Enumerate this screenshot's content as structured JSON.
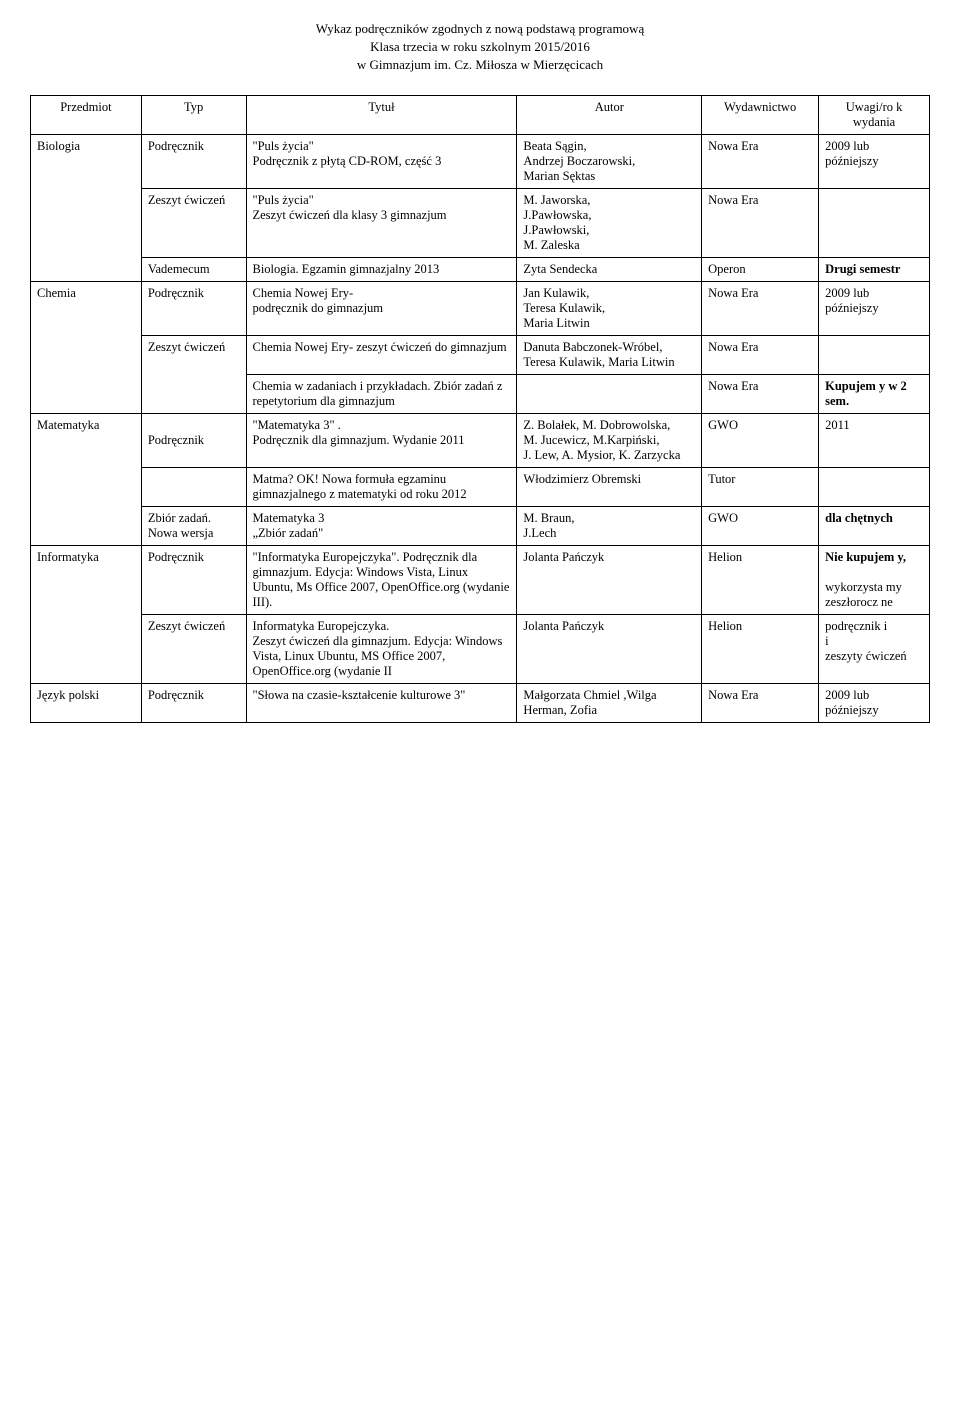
{
  "header": {
    "line1": "Wykaz podręczników zgodnych z nową podstawą programową",
    "line2": "Klasa trzecia w roku szkolnym 2015/2016",
    "line3": "w Gimnazjum im. Cz. Miłosza w Mierzęcicach"
  },
  "columns": [
    "Przedmiot",
    "Typ",
    "Tytuł",
    "Autor",
    "Wydawnictwo",
    "Uwagi/ro k wydania"
  ],
  "rows": [
    {
      "c0": "Biologia",
      "c1": "Podręcznik",
      "c2": "\"Puls życia\"\nPodręcznik z płytą CD-ROM, część 3",
      "c3": "Beata Sągin,\nAndrzej Boczarowski,\nMarian Sęktas",
      "c4": "Nowa Era",
      "c5": "2009 lub późniejszy",
      "r0": 3
    },
    {
      "c1": "Zeszyt ćwiczeń",
      "c2": "\"Puls życia\"\nZeszyt ćwiczeń dla klasy 3 gimnazjum",
      "c3": "M. Jaworska,\nJ.Pawłowska,\nJ.Pawłowski,\n M. Zaleska",
      "c4": "Nowa Era",
      "c5": ""
    },
    {
      "c1": "Vademecum",
      "c2": "Biologia. Egzamin gimnazjalny 2013",
      "c3": "Zyta Sendecka",
      "c4": "Operon",
      "c5": "Drugi semestr",
      "b5": true
    },
    {
      "c0": "Chemia",
      "c1": "Podręcznik",
      "c2": "Chemia Nowej Ery-\npodręcznik do gimnazjum",
      "c3": "Jan Kulawik,\nTeresa Kulawik,\nMaria Litwin",
      "c4": "Nowa Era",
      "c5": "2009 lub późniejszy",
      "r0": 3
    },
    {
      "c1": "Zeszyt ćwiczeń",
      "c2": "Chemia Nowej Ery- zeszyt ćwiczeń do gimnazjum",
      "c3": "Danuta Babczonek-Wróbel, Teresa Kulawik, Maria Litwin",
      "c4": "Nowa Era",
      "c5": "",
      "r1": 2
    },
    {
      "c2": "Chemia w zadaniach i przykładach. Zbiór zadań z repetytorium dla gimnazjum",
      "c3": "",
      "c4": "Nowa Era",
      "c5": "Kupujem y w 2 sem.",
      "b5": true
    },
    {
      "c0": "Matematyka",
      "c1": "\nPodręcznik",
      "c2": "\"Matematyka  3\" .\nPodręcznik dla gimnazjum. Wydanie 2011",
      "c3": "Z. Bolałek, M. Dobrowolska,\nM. Jucewicz, M.Karpiński,\nJ. Lew, A. Mysior, K. Zarzycka",
      "c4": "GWO",
      "c5": "2011",
      "r0": 3
    },
    {
      "c1": "",
      "c2": "Matma? OK! Nowa formuła egzaminu gimnazjalnego z matematyki od roku 2012",
      "c3": "Włodzimierz Obremski",
      "c4": "Tutor",
      "c5": ""
    },
    {
      "c1": "Zbiór zadań.\nNowa wersja",
      "c2": " Matematyka 3\n„Zbiór zadań\"",
      "c3": "M. Braun,\nJ.Lech",
      "c4": "GWO",
      "c5": "dla chętnych",
      "b5": true
    },
    {
      "c0": "Informatyka",
      "c1": "Podręcznik",
      "c2": "\"Informatyka Europejczyka\". Podręcznik dla gimnazjum. Edycja: Windows Vista, Linux Ubuntu, Ms Office 2007, OpenOffice.org (wydanie III).",
      "c3": "Jolanta Pańczyk",
      "c4": "Helion",
      "c5": " Nie kupujem y,\n\nwykorzysta my zeszłorocz ne",
      "r0": 2,
      "b5p": true
    },
    {
      "c1": "Zeszyt ćwiczeń",
      "c2": "Informatyka Europejczyka.\nZeszyt ćwiczeń dla gimnazjum. Edycja: Windows Vista, Linux Ubuntu, MS Office 2007, OpenOffice.org (wydanie II",
      "c3": "Jolanta Pańczyk",
      "c4": "Helion",
      "c5": "podręcznik i\ni\nzeszyty ćwiczeń"
    },
    {
      "c0": "Język polski",
      "c1": "Podręcznik",
      "c2": "\"Słowa na czasie-kształcenie kulturowe 3\"",
      "c3": "Małgorzata Chmiel ,Wilga Herman, Zofia",
      "c4": "Nowa Era",
      "c5": "2009 lub późniejszy"
    }
  ],
  "style": {
    "col_widths": [
      "90px",
      "85px",
      "220px",
      "150px",
      "95px",
      "90px"
    ]
  }
}
